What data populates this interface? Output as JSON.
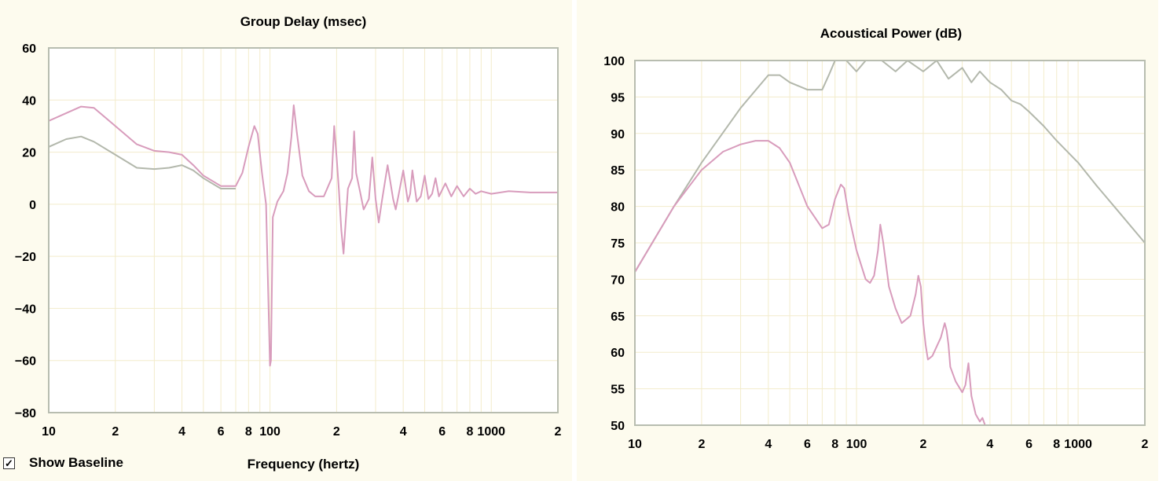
{
  "colors": {
    "panel_bg": "#fdfbee",
    "plot_bg": "#ffffff",
    "grid": "#f3eccb",
    "frame": "#b8bdb0",
    "baseline_series": "#b3b8ac",
    "measured_series": "#d89cbc"
  },
  "controls": {
    "show_baseline_label": "Show Baseline",
    "show_baseline_checked": true,
    "check_glyph": "✓"
  },
  "chart_data": [
    {
      "type": "line",
      "title": "Group Delay (msec)",
      "xlabel": "Frequency (hertz)",
      "ylabel": "",
      "xscale": "log",
      "xlim": [
        10,
        2000
      ],
      "ylim": [
        -80,
        60
      ],
      "grid": true,
      "yticks": [
        60,
        40,
        20,
        0,
        -20,
        -40,
        -60,
        -80
      ],
      "xticks": [
        {
          "value": 10,
          "label": "10"
        },
        {
          "value": 20,
          "label": "2"
        },
        {
          "value": 40,
          "label": "4"
        },
        {
          "value": 60,
          "label": "6"
        },
        {
          "value": 80,
          "label": "8"
        },
        {
          "value": 100,
          "label": "100"
        },
        {
          "value": 200,
          "label": "2"
        },
        {
          "value": 400,
          "label": "4"
        },
        {
          "value": 600,
          "label": "6"
        },
        {
          "value": 800,
          "label": "8"
        },
        {
          "value": 1000,
          "label": "1000"
        },
        {
          "value": 2000,
          "label": "2"
        }
      ],
      "series": [
        {
          "role": "baseline",
          "x": [
            10,
            12,
            14,
            16,
            20,
            25,
            30,
            35,
            40,
            45,
            50,
            60,
            70
          ],
          "y": [
            22,
            25,
            26,
            24,
            19,
            14,
            13.5,
            14,
            15,
            13,
            10,
            6,
            6
          ]
        },
        {
          "role": "measured",
          "x": [
            10,
            12,
            14,
            16,
            20,
            25,
            30,
            35,
            40,
            45,
            50,
            60,
            70,
            75,
            80,
            85,
            88,
            92,
            96,
            100,
            101,
            103,
            108,
            115,
            120,
            125,
            128,
            132,
            140,
            150,
            160,
            175,
            190,
            195,
            200,
            205,
            210,
            215,
            225,
            235,
            240,
            245,
            255,
            265,
            280,
            290,
            300,
            310,
            320,
            340,
            360,
            370,
            380,
            400,
            420,
            430,
            440,
            460,
            480,
            500,
            520,
            540,
            560,
            580,
            620,
            660,
            700,
            750,
            800,
            850,
            900,
            1000,
            1200,
            1500,
            1800,
            2000
          ],
          "y": [
            32,
            35,
            37.5,
            37,
            30,
            23,
            20.5,
            20,
            19,
            15,
            11,
            7,
            7,
            12,
            22,
            30,
            27,
            12,
            0,
            -62,
            -60,
            -5,
            1,
            5,
            12,
            26,
            38,
            28,
            11,
            5,
            3,
            3,
            10,
            30,
            18,
            5,
            -10,
            -19,
            6,
            10,
            28,
            12,
            5,
            -2,
            2,
            18,
            2,
            -7,
            1,
            15,
            2,
            -2,
            3,
            13,
            1,
            4,
            13,
            1,
            3,
            11,
            2,
            4,
            10,
            3,
            8,
            3,
            7,
            3,
            6,
            4,
            5,
            4,
            5,
            4.5,
            4.5,
            4.5
          ]
        }
      ]
    },
    {
      "type": "line",
      "title": "Acoustical Power (dB)",
      "xlabel": "",
      "ylabel": "",
      "xscale": "log",
      "xlim": [
        10,
        2000
      ],
      "ylim": [
        50,
        100
      ],
      "grid": true,
      "yticks": [
        100,
        95,
        90,
        85,
        80,
        75,
        70,
        65,
        60,
        55,
        50
      ],
      "xticks": [
        {
          "value": 10,
          "label": "10"
        },
        {
          "value": 20,
          "label": "2"
        },
        {
          "value": 40,
          "label": "4"
        },
        {
          "value": 60,
          "label": "6"
        },
        {
          "value": 80,
          "label": "8"
        },
        {
          "value": 100,
          "label": "100"
        },
        {
          "value": 200,
          "label": "2"
        },
        {
          "value": 400,
          "label": "4"
        },
        {
          "value": 600,
          "label": "6"
        },
        {
          "value": 800,
          "label": "8"
        },
        {
          "value": 1000,
          "label": "1000"
        },
        {
          "value": 2000,
          "label": "2"
        }
      ],
      "series": [
        {
          "role": "baseline",
          "x": [
            10,
            15,
            20,
            30,
            40,
            45,
            50,
            60,
            70,
            75,
            80,
            90,
            100,
            110,
            120,
            130,
            150,
            170,
            200,
            230,
            260,
            300,
            330,
            360,
            400,
            450,
            500,
            550,
            600,
            700,
            800,
            1000,
            1200,
            1500,
            2000
          ],
          "y": [
            71,
            80,
            86,
            93.5,
            98,
            98,
            97,
            96,
            96,
            98,
            100,
            100,
            98.5,
            100,
            100,
            100,
            98.5,
            100,
            98.5,
            100,
            97.5,
            99,
            97,
            98.5,
            97,
            96,
            94.5,
            94,
            93,
            91,
            89,
            86,
            83,
            79.5,
            75
          ]
        },
        {
          "role": "measured",
          "x": [
            10,
            15,
            20,
            25,
            30,
            35,
            40,
            45,
            50,
            60,
            70,
            75,
            80,
            85,
            88,
            92,
            100,
            110,
            115,
            120,
            125,
            128,
            132,
            140,
            150,
            160,
            175,
            185,
            190,
            195,
            200,
            205,
            210,
            220,
            240,
            250,
            255,
            260,
            265,
            280,
            300,
            310,
            320,
            330,
            345,
            360,
            370,
            380
          ],
          "y": [
            71,
            80,
            85,
            87.5,
            88.5,
            89,
            89,
            88,
            86,
            80,
            77,
            77.5,
            81,
            83,
            82.5,
            79,
            74,
            70,
            69.5,
            70.5,
            74,
            77.5,
            75,
            69,
            66,
            64,
            65,
            68,
            70.5,
            69,
            64,
            61,
            59,
            59.5,
            62,
            64,
            63,
            61,
            58,
            56,
            54.5,
            55.5,
            58.5,
            54,
            51.5,
            50.5,
            51,
            50
          ]
        }
      ]
    }
  ]
}
